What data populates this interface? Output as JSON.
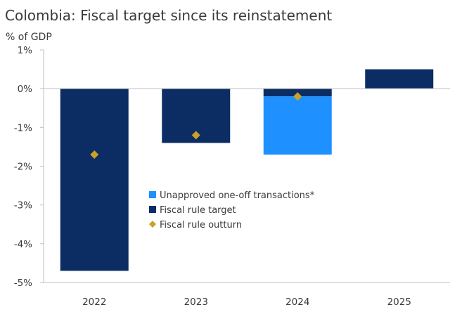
{
  "chart_data": {
    "type": "bar",
    "title": "Colombia: Fiscal target since its reinstatement",
    "ylabel": "% of GDP",
    "xlabel": "",
    "categories": [
      "2022",
      "2023",
      "2024",
      "2025"
    ],
    "ylim": [
      -5,
      1
    ],
    "yticks": [
      1,
      0,
      -1,
      -2,
      -3,
      -4,
      -5
    ],
    "ytick_labels": [
      "1%",
      "0%",
      "-1%",
      "-2%",
      "-3%",
      "-4%",
      "-5%"
    ],
    "grid": false,
    "legend_position": "center",
    "series": [
      {
        "name": "Unapproved one-off transactions*",
        "kind": "bar",
        "stacked": true,
        "color": "#1e90ff",
        "values": [
          0,
          0,
          -1.5,
          0
        ]
      },
      {
        "name": "Fiscal rule target",
        "kind": "bar",
        "stacked": true,
        "color": "#0c2d64",
        "values": [
          -4.7,
          -1.4,
          -0.2,
          0.5
        ]
      },
      {
        "name": "Fiscal rule outturn",
        "kind": "marker",
        "marker": "diamond",
        "color": "#c9a227",
        "values": [
          -1.7,
          -1.2,
          -0.2,
          null
        ]
      }
    ],
    "axis_color": "#bfbfbf"
  }
}
